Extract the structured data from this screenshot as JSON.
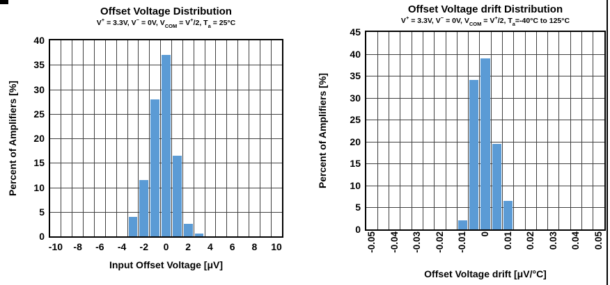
{
  "page": {
    "artifacts": [
      "top-left-black-mark",
      "right-border-line"
    ]
  },
  "chart_data": [
    {
      "type": "bar",
      "title": "Offset Voltage Distribution",
      "subtitle_parts": [
        [
          "V",
          ""
        ],
        [
          "+",
          "sup"
        ],
        [
          " = 3.3V, V",
          ""
        ],
        [
          "−",
          "sup"
        ],
        [
          " = 0V, V",
          ""
        ],
        [
          "COM",
          "sub"
        ],
        [
          " = V",
          ""
        ],
        [
          "+",
          "sup"
        ],
        [
          "/2, T",
          ""
        ],
        [
          "a",
          "sub"
        ],
        [
          " = 25°C",
          ""
        ]
      ],
      "xlabel": "Input Offset Voltage [μV]",
      "ylabel": "Percent of Amplifiers [%]",
      "x": [
        -3,
        -2,
        -1,
        0,
        1,
        2,
        3
      ],
      "values": [
        4,
        11.5,
        28,
        37,
        16.5,
        2.5,
        0.5
      ],
      "bin_width": 1,
      "xlim": [
        -10.5,
        10.5
      ],
      "x_ticks": [
        {
          "v": -10,
          "label": "-10"
        },
        {
          "v": -8,
          "label": "-8"
        },
        {
          "v": -6,
          "label": "-6"
        },
        {
          "v": -4,
          "label": "-4"
        },
        {
          "v": -2,
          "label": "-2"
        },
        {
          "v": 0,
          "label": "0"
        },
        {
          "v": 2,
          "label": "2"
        },
        {
          "v": 4,
          "label": "4"
        },
        {
          "v": 6,
          "label": "6"
        },
        {
          "v": 8,
          "label": "8"
        },
        {
          "v": 10,
          "label": "10"
        }
      ],
      "ylim": [
        0,
        40
      ],
      "y_ticks": [
        {
          "v": 0,
          "label": "0"
        },
        {
          "v": 5,
          "label": "5"
        },
        {
          "v": 10,
          "label": "10"
        },
        {
          "v": 15,
          "label": "15"
        },
        {
          "v": 20,
          "label": "20"
        },
        {
          "v": 25,
          "label": "25"
        },
        {
          "v": 30,
          "label": "30"
        },
        {
          "v": 35,
          "label": "35"
        },
        {
          "v": 40,
          "label": "40"
        }
      ],
      "rotate_x_labels": false,
      "bar_color": "#5B9BD5",
      "grid": true,
      "legend": "none"
    },
    {
      "type": "bar",
      "title": "Offset Voltage drift Distribution",
      "subtitle_parts": [
        [
          "V",
          ""
        ],
        [
          "+",
          "sup"
        ],
        [
          " = 3.3V, V",
          ""
        ],
        [
          "−",
          "sup"
        ],
        [
          " = 0V, V",
          ""
        ],
        [
          "COM",
          "sub"
        ],
        [
          " = V",
          ""
        ],
        [
          "+",
          "sup"
        ],
        [
          "/2, T",
          ""
        ],
        [
          "a",
          "sub"
        ],
        [
          "=-40°C to 125°C",
          ""
        ]
      ],
      "xlabel": "Offset Voltage drift [μV/°C]",
      "ylabel": "Percent of Amplifiers [%]",
      "x": [
        -0.01,
        -0.005,
        0,
        0.005,
        0.01
      ],
      "values": [
        2,
        34,
        39,
        19.5,
        6.5
      ],
      "bin_width": 0.005,
      "xlim": [
        -0.0525,
        0.0525
      ],
      "x_ticks": [
        {
          "v": -0.05,
          "label": "-0.05"
        },
        {
          "v": -0.04,
          "label": "-0.04"
        },
        {
          "v": -0.03,
          "label": "-0.03"
        },
        {
          "v": -0.02,
          "label": "-0.02"
        },
        {
          "v": -0.01,
          "label": "-0.01"
        },
        {
          "v": 0,
          "label": "0"
        },
        {
          "v": 0.01,
          "label": "0.01"
        },
        {
          "v": 0.02,
          "label": "0.02"
        },
        {
          "v": 0.03,
          "label": "0.03"
        },
        {
          "v": 0.04,
          "label": "0.04"
        },
        {
          "v": 0.05,
          "label": "0.05"
        }
      ],
      "ylim": [
        0,
        45
      ],
      "y_ticks": [
        {
          "v": 0,
          "label": "0"
        },
        {
          "v": 5,
          "label": "5"
        },
        {
          "v": 10,
          "label": "10"
        },
        {
          "v": 15,
          "label": "15"
        },
        {
          "v": 20,
          "label": "20"
        },
        {
          "v": 25,
          "label": "25"
        },
        {
          "v": 30,
          "label": "30"
        },
        {
          "v": 35,
          "label": "35"
        },
        {
          "v": 40,
          "label": "40"
        },
        {
          "v": 45,
          "label": "45"
        }
      ],
      "rotate_x_labels": true,
      "bar_color": "#5B9BD5",
      "grid": true,
      "legend": "none"
    }
  ]
}
